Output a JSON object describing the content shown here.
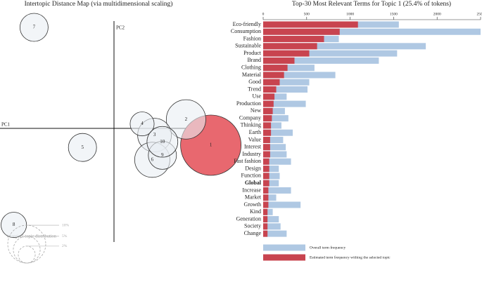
{
  "chart_data": [
    {
      "type": "bubble",
      "title": "Intertopic Distance Map (via multidimensional scaling)",
      "xlabel": "PC1",
      "ylabel": "PC2",
      "labels": [
        "1",
        "2",
        "3",
        "4",
        "5",
        "6",
        "7",
        "8",
        "9",
        "10"
      ],
      "x": [
        0.86,
        0.64,
        0.36,
        0.25,
        -0.28,
        0.34,
        -0.71,
        -0.89,
        0.43,
        0.43
      ],
      "y": [
        -0.15,
        0.08,
        -0.06,
        0.04,
        -0.17,
        -0.28,
        0.9,
        -0.86,
        -0.24,
        -0.12
      ],
      "sizes": [
        25.4,
        10.8,
        7.9,
        4.0,
        5.5,
        8.6,
        5.5,
        4.5,
        5.5,
        6.6
      ],
      "selected_color": "#e8686f",
      "color": "#e9eef3",
      "size_legend_title": "Marginal topic distribution",
      "size_legend": [
        {
          "value": 2,
          "label": "2%"
        },
        {
          "value": 5,
          "label": "5%"
        },
        {
          "value": 10,
          "label": "10%"
        }
      ]
    },
    {
      "type": "hbar",
      "title": "Top-30 Most Relevant Terms for Topic 1 (25.4% of tokens)",
      "categories": [
        "Eco-friendly",
        "Consumption",
        "Fashion",
        "Sustainable",
        "Product",
        "Brand",
        "Clothing",
        "Material",
        "Good",
        "Trend",
        "Use",
        "Production",
        "New",
        "Company",
        "Thinking",
        "Earth",
        "Value",
        "Interest",
        "Industry",
        "Fast fashion",
        "Design",
        "Function",
        "Global",
        "Increase",
        "Market",
        "Growth",
        "Kind",
        "Generation",
        "Society",
        "Change"
      ],
      "bold_terms": [
        "Global"
      ],
      "series": [
        {
          "name": "Overall term frequency",
          "color": "#afc8e3",
          "values": [
            1560,
            2500,
            870,
            1870,
            1540,
            1330,
            590,
            830,
            530,
            510,
            270,
            490,
            250,
            290,
            210,
            340,
            230,
            260,
            270,
            320,
            180,
            190,
            180,
            320,
            150,
            430,
            110,
            180,
            200,
            270
          ]
        },
        {
          "name": "Estimated term frequency withing the selected topic",
          "color": "#c8444f",
          "values": [
            1090,
            880,
            700,
            620,
            530,
            360,
            280,
            240,
            190,
            150,
            130,
            120,
            110,
            100,
            90,
            90,
            80,
            80,
            80,
            70,
            70,
            70,
            70,
            60,
            60,
            60,
            50,
            50,
            50,
            50
          ]
        }
      ],
      "xlim": [
        0,
        2500
      ],
      "xticks": [
        0,
        500,
        1000,
        1500,
        2000,
        2500
      ]
    }
  ]
}
